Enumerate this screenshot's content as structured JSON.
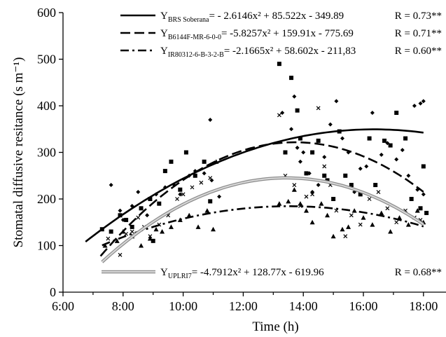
{
  "chart_data": {
    "type": "scatter",
    "title": "",
    "xlabel": "Time (h)",
    "ylabel": "Stomatal diffusive resitance (s m⁻¹)",
    "xlim": [
      6,
      18.75
    ],
    "ylim": [
      0,
      600
    ],
    "x_ticks": [
      "6:00",
      "8:00",
      "10:00",
      "12:00",
      "14:00",
      "16:00",
      "18:00"
    ],
    "y_ticks": [
      "0",
      "100",
      "200",
      "300",
      "400",
      "500",
      "600"
    ],
    "legend_placement": "top-right and bottom",
    "series": [
      {
        "name": "BRS Soberana",
        "marker": "diamond",
        "line_style": "solid",
        "equation": {
          "y_label": "Y",
          "subscript": "BRS Soberana",
          "formula": "= - 2.6146x² + 85.522x - 349.89",
          "r_text": "R = 0.73**"
        },
        "curve": {
          "a": -2.6146,
          "b": 85.522,
          "c": -349.89,
          "x_range": [
            6.75,
            18
          ]
        },
        "points": [
          [
            7.6,
            230
          ],
          [
            7.9,
            175
          ],
          [
            8.0,
            155
          ],
          [
            8.3,
            185
          ],
          [
            8.5,
            215
          ],
          [
            8.8,
            165
          ],
          [
            9.1,
            210
          ],
          [
            9.4,
            225
          ],
          [
            9.7,
            230
          ],
          [
            9.9,
            210
          ],
          [
            10.2,
            250
          ],
          [
            10.4,
            260
          ],
          [
            10.7,
            255
          ],
          [
            10.9,
            370
          ],
          [
            10.95,
            240
          ],
          [
            11.2,
            205
          ],
          [
            13.3,
            385
          ],
          [
            13.6,
            350
          ],
          [
            13.7,
            420
          ],
          [
            13.8,
            310
          ],
          [
            13.9,
            280
          ],
          [
            14.0,
            300
          ],
          [
            14.2,
            255
          ],
          [
            14.3,
            215
          ],
          [
            14.5,
            230
          ],
          [
            14.7,
            290
          ],
          [
            14.9,
            360
          ],
          [
            15.1,
            410
          ],
          [
            15.3,
            330
          ],
          [
            15.5,
            300
          ],
          [
            15.7,
            215
          ],
          [
            15.9,
            265
          ],
          [
            16.1,
            270
          ],
          [
            16.3,
            385
          ],
          [
            16.6,
            295
          ],
          [
            16.8,
            320
          ],
          [
            17.1,
            285
          ],
          [
            17.3,
            305
          ],
          [
            17.5,
            250
          ],
          [
            17.7,
            400
          ],
          [
            17.8,
            220
          ],
          [
            17.9,
            405
          ],
          [
            18.0,
            410
          ],
          [
            18.0,
            210
          ]
        ]
      },
      {
        "name": "B6144F-MR-6-0-0",
        "marker": "square",
        "line_style": "dashed",
        "equation": {
          "y_label": "Y",
          "subscript": "B6144F-MR-6-0-0",
          "formula": "= -5.8257x² + 159.91x - 775.69",
          "r_text": "R = 0.71**"
        },
        "curve": {
          "a": -5.8257,
          "b": 159.91,
          "c": -775.69,
          "x_range": [
            7.25,
            18
          ]
        },
        "points": [
          [
            7.3,
            135
          ],
          [
            7.6,
            130
          ],
          [
            7.9,
            165
          ],
          [
            8.1,
            155
          ],
          [
            8.3,
            140
          ],
          [
            8.6,
            180
          ],
          [
            8.9,
            200
          ],
          [
            9.0,
            110
          ],
          [
            9.2,
            190
          ],
          [
            9.4,
            260
          ],
          [
            9.6,
            280
          ],
          [
            9.9,
            220
          ],
          [
            10.1,
            300
          ],
          [
            10.4,
            250
          ],
          [
            10.7,
            280
          ],
          [
            10.9,
            195
          ],
          [
            13.2,
            490
          ],
          [
            13.4,
            300
          ],
          [
            13.6,
            460
          ],
          [
            13.8,
            390
          ],
          [
            13.9,
            330
          ],
          [
            14.1,
            255
          ],
          [
            14.3,
            300
          ],
          [
            14.5,
            325
          ],
          [
            14.7,
            250
          ],
          [
            14.8,
            240
          ],
          [
            15.0,
            200
          ],
          [
            15.2,
            345
          ],
          [
            15.4,
            250
          ],
          [
            15.6,
            230
          ],
          [
            15.9,
            210
          ],
          [
            16.2,
            330
          ],
          [
            16.4,
            230
          ],
          [
            16.7,
            325
          ],
          [
            16.9,
            315
          ],
          [
            17.1,
            385
          ],
          [
            17.4,
            330
          ],
          [
            17.6,
            200
          ],
          [
            17.9,
            180
          ],
          [
            18.0,
            270
          ],
          [
            18.1,
            170
          ]
        ]
      },
      {
        "name": "IR80312-6-B-3-2-B",
        "marker": "triangle",
        "line_style": "dash-dot",
        "equation": {
          "y_label": "Y",
          "subscript": "IR80312-6-B-3-2-B",
          "formula": "= -2.1665x² + 58.602x - 211,83",
          "r_text": "R = 0.60**"
        },
        "curve": {
          "a": -2.1665,
          "b": 58.602,
          "c": -211.83,
          "x_range": [
            7.3,
            18
          ]
        },
        "points": [
          [
            7.4,
            100
          ],
          [
            7.8,
            110
          ],
          [
            8.0,
            130
          ],
          [
            8.3,
            120
          ],
          [
            8.6,
            100
          ],
          [
            8.9,
            115
          ],
          [
            9.1,
            135
          ],
          [
            9.3,
            130
          ],
          [
            9.6,
            140
          ],
          [
            9.9,
            155
          ],
          [
            10.2,
            165
          ],
          [
            10.5,
            140
          ],
          [
            10.8,
            175
          ],
          [
            11.0,
            135
          ],
          [
            11.1,
            280
          ],
          [
            13.2,
            190
          ],
          [
            13.5,
            195
          ],
          [
            13.7,
            220
          ],
          [
            13.9,
            190
          ],
          [
            14.1,
            175
          ],
          [
            14.3,
            150
          ],
          [
            14.6,
            190
          ],
          [
            14.8,
            165
          ],
          [
            15.0,
            120
          ],
          [
            15.3,
            135
          ],
          [
            15.5,
            140
          ],
          [
            15.7,
            175
          ],
          [
            16.0,
            160
          ],
          [
            16.3,
            145
          ],
          [
            16.6,
            170
          ],
          [
            16.9,
            130
          ],
          [
            17.2,
            160
          ],
          [
            17.5,
            145
          ],
          [
            17.8,
            175
          ],
          [
            18.0,
            150
          ]
        ]
      },
      {
        "name": "UPLRI7",
        "marker": "x",
        "line_style": "double-gray",
        "equation": {
          "y_label": "Y",
          "subscript": "UPLRI7",
          "formula": "= -4.7912x² + 128.77x - 619.96",
          "r_text": "R = 0.68**"
        },
        "curve": {
          "a": -4.7912,
          "b": 128.77,
          "c": -619.96,
          "x_range": [
            7.3,
            18
          ]
        },
        "points": [
          [
            7.5,
            115
          ],
          [
            7.9,
            80
          ],
          [
            8.1,
            125
          ],
          [
            8.3,
            130
          ],
          [
            8.5,
            160
          ],
          [
            8.7,
            140
          ],
          [
            8.9,
            120
          ],
          [
            9.2,
            145
          ],
          [
            9.5,
            165
          ],
          [
            9.8,
            200
          ],
          [
            10.0,
            210
          ],
          [
            10.3,
            225
          ],
          [
            10.6,
            235
          ],
          [
            10.9,
            245
          ],
          [
            13.2,
            380
          ],
          [
            13.4,
            250
          ],
          [
            13.7,
            230
          ],
          [
            13.9,
            185
          ],
          [
            14.1,
            205
          ],
          [
            14.3,
            210
          ],
          [
            14.5,
            395
          ],
          [
            14.7,
            270
          ],
          [
            14.9,
            230
          ],
          [
            15.1,
            175
          ],
          [
            15.4,
            120
          ],
          [
            15.6,
            165
          ],
          [
            15.9,
            145
          ],
          [
            16.2,
            200
          ],
          [
            16.5,
            215
          ],
          [
            16.8,
            180
          ],
          [
            17.1,
            150
          ],
          [
            17.4,
            175
          ],
          [
            17.7,
            160
          ],
          [
            17.9,
            155
          ]
        ]
      }
    ]
  }
}
